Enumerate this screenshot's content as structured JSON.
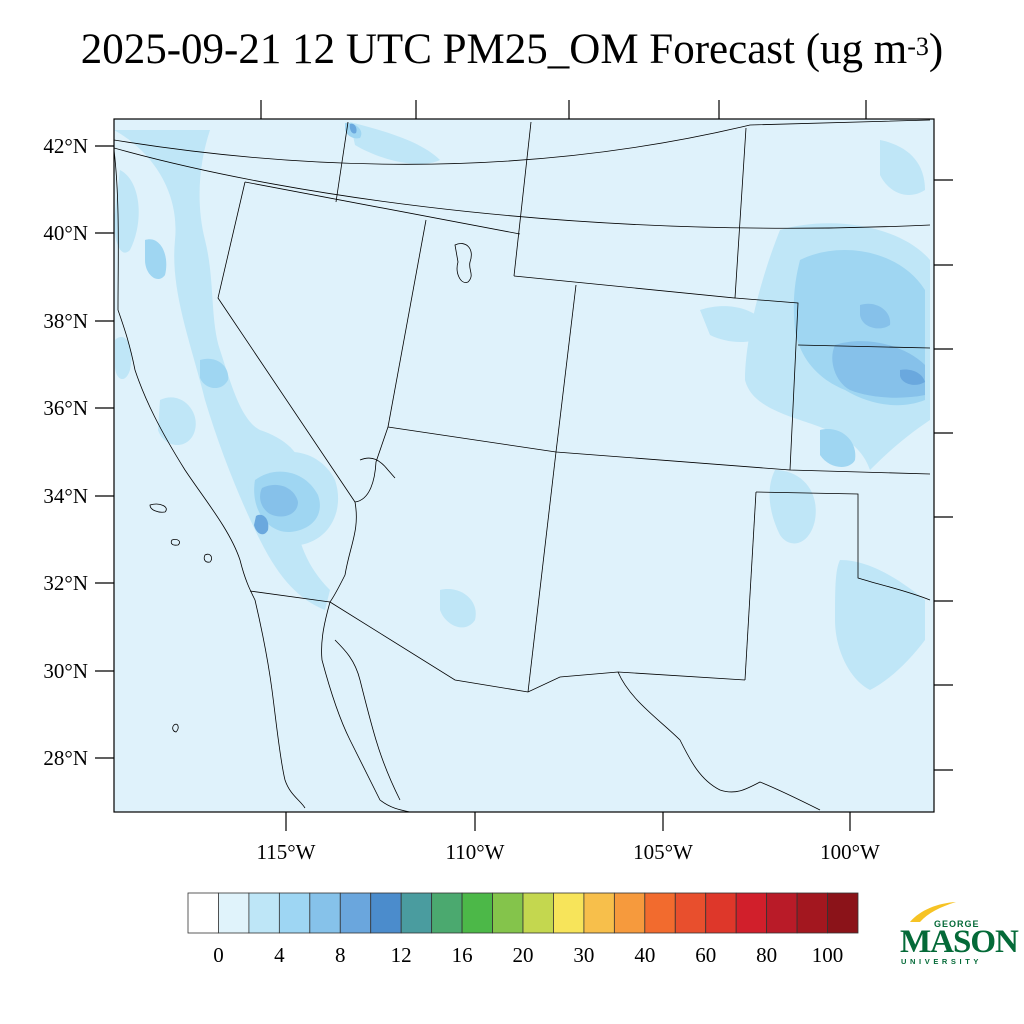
{
  "title": {
    "main": "2025-09-21 12 UTC PM25_OM Forecast (ug m",
    "superscript": "-3",
    "close": ")"
  },
  "map": {
    "projection": "lambert-conformal",
    "lat_labels": [
      "42°N",
      "40°N",
      "38°N",
      "36°N",
      "34°N",
      "32°N",
      "30°N",
      "28°N"
    ],
    "lon_labels": [
      "115°W",
      "110°W",
      "105°W",
      "100°W"
    ],
    "background_fill": "#dff2fb",
    "shade_colors": [
      "#bfe6f7",
      "#9fd6f2",
      "#86c1ea",
      "#6aa8de"
    ]
  },
  "colorbar": {
    "colors": [
      "#ffffff",
      "#e0f3fb",
      "#bee6f7",
      "#9ed6f3",
      "#86c2ea",
      "#6aa6dd",
      "#4b8ccc",
      "#4a9c9f",
      "#4ba96f",
      "#4cb848",
      "#84c44b",
      "#c4d74f",
      "#f7e45a",
      "#f7bf4b",
      "#f69a3d",
      "#f26b2e",
      "#e84f2d",
      "#de372a",
      "#d11f2b",
      "#b91b28",
      "#a3171f",
      "#8b1319"
    ],
    "labels": [
      "0",
      "4",
      "8",
      "12",
      "16",
      "20",
      "30",
      "40",
      "60",
      "80",
      "100"
    ]
  },
  "logo": {
    "line1": "GEORGE",
    "line2": "MASON",
    "line3": "UNIVERSITY",
    "color": "#046a38",
    "accent": "#f6c324"
  }
}
